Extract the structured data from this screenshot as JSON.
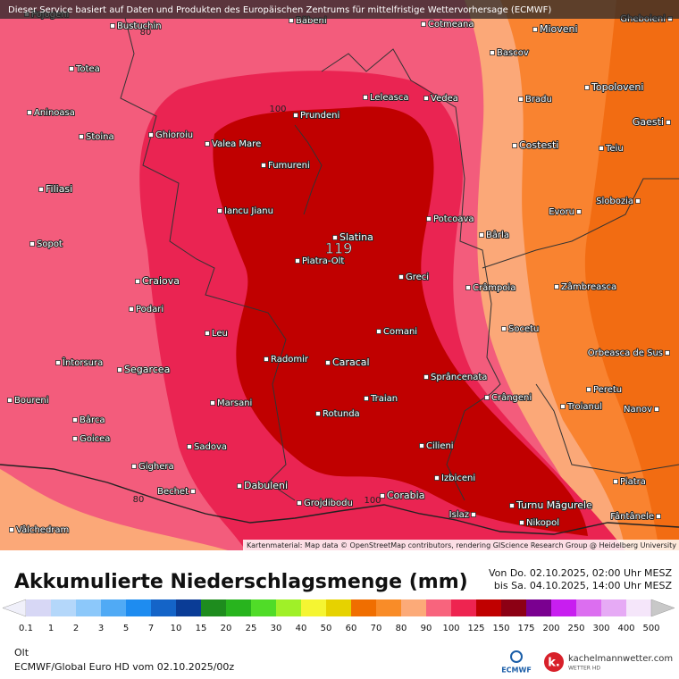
{
  "header": {
    "notice": "Dieser Service basiert auf Daten und Produkten des Europäischen Zentrums für mittelfristige Wettervorhersage (ECMWF)"
  },
  "map": {
    "places": [
      "Pojogeni",
      "Bustuchin",
      "Băbeni",
      "Cotmeana",
      "Mioveni",
      "Gheboieni",
      "Totea",
      "Bascov",
      "Topoloveni",
      "Leleasca",
      "Vedea",
      "Bradu",
      "Gaesti",
      "Aninoasa",
      "Prundeni",
      "Stoina",
      "Ghioroiu",
      "Valea Mare",
      "Costesti",
      "Teiu",
      "Fumureni",
      "Filiasi",
      "Slobozia",
      "Iancu Jianu",
      "Evoru",
      "Potcoava",
      "Bârla",
      "Slatina",
      "Sopot",
      "Piatra-Olt",
      "Greci",
      "Craiova",
      "Crâmpoia",
      "Zâmbreasca",
      "Podari",
      "Comani",
      "Socetu",
      "Leu",
      "Orbeasca de Sus",
      "Radomir",
      "Caracal",
      "Întorsura",
      "Segarcea",
      "Sprâncenata",
      "Peretu",
      "Crângeni",
      "Traian",
      "Boureni",
      "Marsani",
      "Troianul",
      "Nanov",
      "Rotunda",
      "Bârca",
      "Goicea",
      "Cilieni",
      "Sadova",
      "Gighera",
      "Izbiceni",
      "Piatra",
      "Dabuleni",
      "Bechet",
      "Corabia",
      "Grojdibodu",
      "Turnu Măgurele",
      "Islaz",
      "Fântânele",
      "Nikopol",
      "Vâlchedram"
    ],
    "contour_labels": [
      80,
      100,
      80,
      100
    ],
    "max_label": 119,
    "attribution": "Kartenmaterial: Map data © OpenStreetMap contributors, rendering GIScience Research Group @ Heidelberg University"
  },
  "title": "Akkumulierte Niederschlagsmenge (mm)",
  "period": [
    "Von Do. 02.10.2025, 02:00 Uhr MESZ",
    "bis Sa. 04.10.2025, 14:00 Uhr MESZ"
  ],
  "legend": {
    "values": [
      0.1,
      1,
      2,
      3,
      5,
      7,
      10,
      15,
      20,
      25,
      30,
      40,
      50,
      60,
      70,
      80,
      90,
      100,
      125,
      150,
      175,
      200,
      250,
      300,
      400,
      500
    ],
    "colors": [
      "#f0f0fa",
      "#d7d7f5",
      "#b4d7fa",
      "#8cc8fa",
      "#50aaf5",
      "#1e8cf0",
      "#1464c8",
      "#0a3c96",
      "#1e8c1e",
      "#28b41e",
      "#50dc28",
      "#a0f028",
      "#f5f532",
      "#e6d200",
      "#f06e00",
      "#f98c28",
      "#fcaa78",
      "#f8647d",
      "#ee2450",
      "#c00000",
      "#8c0014",
      "#7a0090",
      "#c81ef0",
      "#dc6ef0",
      "#e6aaf5",
      "#f5e6fa",
      "#c8c8c8"
    ]
  },
  "region": "Olt",
  "source": "ECMWF/Global Euro HD vom 02.10.2025/00z",
  "logos": {
    "ecmwf": "ECMWF",
    "site": "kachelmannwetter.com",
    "site_sub": "WETTER HD"
  }
}
